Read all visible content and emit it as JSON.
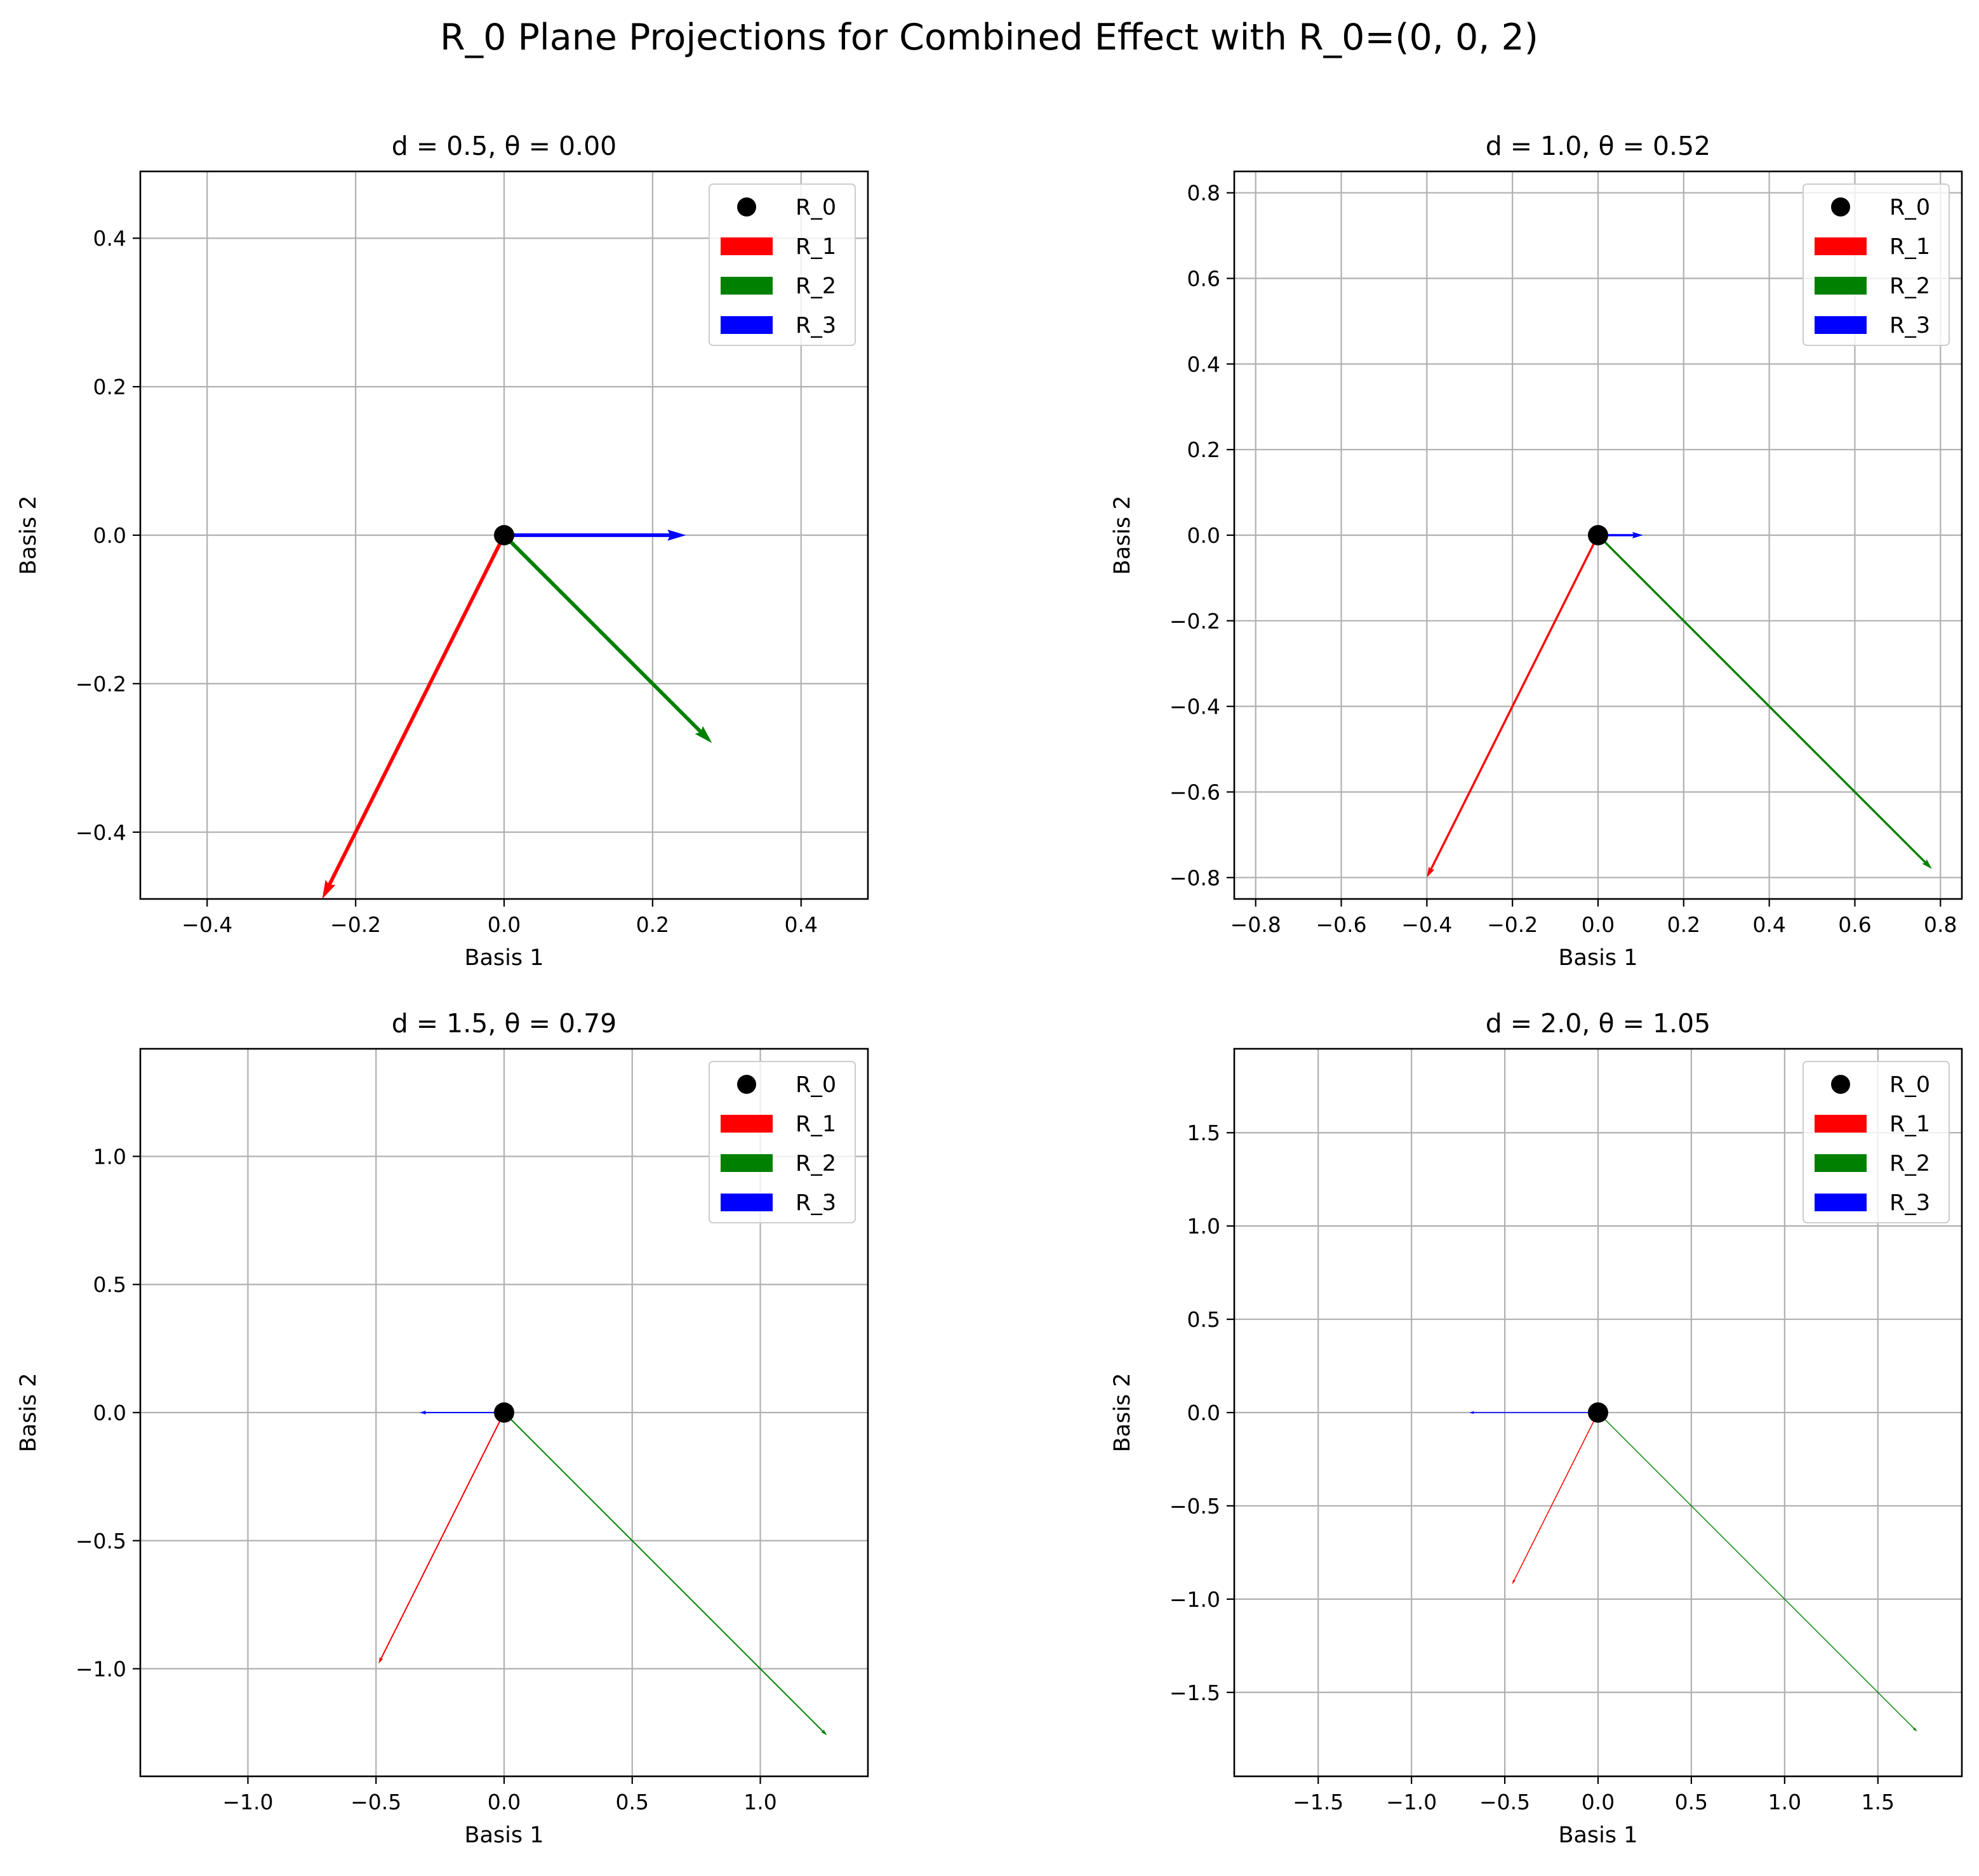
{
  "figure_title": "R_0 Plane Projections for Combined Effect with R_0=(0, 0, 2)",
  "colors": {
    "R_0": "#000000",
    "R_1": "#ff0000",
    "R_2": "#008000",
    "R_3": "#0000ff",
    "grid": "#b0b0b0"
  },
  "chart_data": [
    {
      "type": "quiver",
      "title": "d = 0.5, θ = 0.00",
      "xlabel": "Basis 1",
      "ylabel": "Basis 2",
      "xlim": [
        -0.49,
        0.49
      ],
      "ylim": [
        -0.49,
        0.49
      ],
      "xticks": [
        -0.4,
        -0.2,
        0.0,
        0.2,
        0.4
      ],
      "xtick_labels": [
        "−0.4",
        "−0.2",
        "0.0",
        "0.2",
        "0.4"
      ],
      "yticks": [
        -0.4,
        -0.2,
        0.0,
        0.2,
        0.4
      ],
      "ytick_labels": [
        "−0.4",
        "−0.2",
        "0.0",
        "0.2",
        "0.4"
      ],
      "grid": true,
      "legend_position": "upper right",
      "legend": [
        "R_0",
        "R_1",
        "R_2",
        "R_3"
      ],
      "point": {
        "name": "R_0",
        "x": 0,
        "y": 0
      },
      "arrows": [
        {
          "name": "R_1",
          "x": 0,
          "y": 0,
          "dx": -0.245,
          "dy": -0.49
        },
        {
          "name": "R_2",
          "x": 0,
          "y": 0,
          "dx": 0.28,
          "dy": -0.28
        },
        {
          "name": "R_3",
          "x": 0,
          "y": 0,
          "dx": 0.245,
          "dy": 0.0
        }
      ]
    },
    {
      "type": "quiver",
      "title": "d = 1.0, θ = 0.52",
      "xlabel": "Basis 1",
      "ylabel": "Basis 2",
      "xlim": [
        -0.85,
        0.85
      ],
      "ylim": [
        -0.85,
        0.85
      ],
      "xticks": [
        -0.8,
        -0.6,
        -0.4,
        -0.2,
        0.0,
        0.2,
        0.4,
        0.6,
        0.8
      ],
      "xtick_labels": [
        "−0.8",
        "−0.6",
        "−0.4",
        "−0.2",
        "0.0",
        "0.2",
        "0.4",
        "0.6",
        "0.8"
      ],
      "yticks": [
        -0.8,
        -0.6,
        -0.4,
        -0.2,
        0.0,
        0.2,
        0.4,
        0.6,
        0.8
      ],
      "ytick_labels": [
        "−0.8",
        "−0.6",
        "−0.4",
        "−0.2",
        "0.0",
        "0.2",
        "0.4",
        "0.6",
        "0.8"
      ],
      "grid": true,
      "legend_position": "upper right",
      "legend": [
        "R_0",
        "R_1",
        "R_2",
        "R_3"
      ],
      "point": {
        "name": "R_0",
        "x": 0,
        "y": 0
      },
      "arrows": [
        {
          "name": "R_1",
          "x": 0,
          "y": 0,
          "dx": -0.4,
          "dy": -0.8
        },
        {
          "name": "R_2",
          "x": 0,
          "y": 0,
          "dx": 0.78,
          "dy": -0.78
        },
        {
          "name": "R_3",
          "x": 0,
          "y": 0,
          "dx": 0.105,
          "dy": 0.0
        }
      ]
    },
    {
      "type": "quiver",
      "title": "d = 1.5, θ = 0.79",
      "xlabel": "Basis 1",
      "ylabel": "Basis 2",
      "xlim": [
        -1.42,
        1.42
      ],
      "ylim": [
        -1.42,
        1.42
      ],
      "xticks": [
        -1.0,
        -0.5,
        0.0,
        0.5,
        1.0
      ],
      "xtick_labels": [
        "−1.0",
        "−0.5",
        "0.0",
        "0.5",
        "1.0"
      ],
      "yticks": [
        -1.0,
        -0.5,
        0.0,
        0.5,
        1.0
      ],
      "ytick_labels": [
        "−1.0",
        "−0.5",
        "0.0",
        "0.5",
        "1.0"
      ],
      "grid": true,
      "legend_position": "upper right",
      "legend": [
        "R_0",
        "R_1",
        "R_2",
        "R_3"
      ],
      "point": {
        "name": "R_0",
        "x": 0,
        "y": 0
      },
      "arrows": [
        {
          "name": "R_1",
          "x": 0,
          "y": 0,
          "dx": -0.49,
          "dy": -0.98
        },
        {
          "name": "R_2",
          "x": 0,
          "y": 0,
          "dx": 1.26,
          "dy": -1.26
        },
        {
          "name": "R_3",
          "x": 0,
          "y": 0,
          "dx": -0.33,
          "dy": 0.0
        }
      ]
    },
    {
      "type": "quiver",
      "title": "d = 2.0, θ = 1.05",
      "xlabel": "Basis 1",
      "ylabel": "Basis 2",
      "xlim": [
        -1.95,
        1.95
      ],
      "ylim": [
        -1.95,
        1.95
      ],
      "xticks": [
        -1.5,
        -1.0,
        -0.5,
        0.0,
        0.5,
        1.0,
        1.5
      ],
      "xtick_labels": [
        "−1.5",
        "−1.0",
        "−0.5",
        "0.0",
        "0.5",
        "1.0",
        "1.5"
      ],
      "yticks": [
        -1.5,
        -1.0,
        -0.5,
        0.0,
        0.5,
        1.0,
        1.5
      ],
      "ytick_labels": [
        "−1.5",
        "−1.0",
        "−0.5",
        "0.0",
        "0.5",
        "1.0",
        "1.5"
      ],
      "grid": true,
      "legend_position": "upper right",
      "legend": [
        "R_0",
        "R_1",
        "R_2",
        "R_3"
      ],
      "point": {
        "name": "R_0",
        "x": 0,
        "y": 0
      },
      "arrows": [
        {
          "name": "R_1",
          "x": 0,
          "y": 0,
          "dx": -0.46,
          "dy": -0.92
        },
        {
          "name": "R_2",
          "x": 0,
          "y": 0,
          "dx": 1.71,
          "dy": -1.71
        },
        {
          "name": "R_3",
          "x": 0,
          "y": 0,
          "dx": -0.69,
          "dy": 0.0
        }
      ]
    }
  ]
}
